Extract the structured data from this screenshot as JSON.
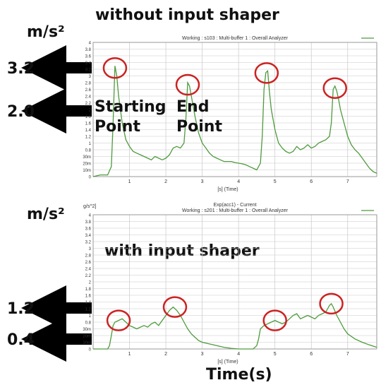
{
  "figure": {
    "title_top": "without input shaper",
    "title_bottom": "with input shaper",
    "unit_top": "m/s²",
    "unit_bottom": "m/s²",
    "x_axis_caption": "Time(s)",
    "starting_point_line1": "Starting",
    "starting_point_line2": "Point",
    "end_point_line1": "End",
    "end_point_line2": "Point",
    "markers_top": [
      "3.2",
      "2.0"
    ],
    "markers_bottom": [
      "1.2",
      "0.4"
    ]
  },
  "colors": {
    "signal": "#4e9a3c",
    "highlight_circle": "#cc2222",
    "arrow": "#000000",
    "grid": "#c8c8c8",
    "axis_box": "#9a9a9a"
  },
  "chart_data": [
    {
      "type": "line",
      "header": "Working : s103 : Multi-buffer 1 : Overall Analyzer",
      "xlabel": "[s] (Time)",
      "xlim": [
        0,
        7.8
      ],
      "ylim": [
        0,
        4
      ],
      "yticks": [
        "0",
        "10m",
        "20m",
        "30m",
        "0.8",
        "1",
        "1.2",
        "1.4",
        "1.6",
        "1.8",
        "2",
        "2.2",
        "2.4",
        "2.6",
        "2.8",
        "3",
        "3.2",
        "3.4",
        "3.6",
        "3.8",
        "4"
      ],
      "xticks": [
        "1",
        "2",
        "3",
        "4",
        "5",
        "6",
        "7"
      ],
      "grid": true,
      "series": [
        {
          "x": [
            0,
            0.2,
            0.4,
            0.5,
            0.55,
            0.6,
            0.65,
            0.7,
            0.8,
            0.9,
            1.0,
            1.1,
            1.2,
            1.3,
            1.4,
            1.5,
            1.6,
            1.7,
            1.8,
            1.9,
            2.0,
            2.1,
            2.2,
            2.3,
            2.4,
            2.5,
            2.55,
            2.6,
            2.65,
            2.7,
            2.8,
            2.9,
            3.0,
            3.1,
            3.2,
            3.3,
            3.4,
            3.5,
            3.6,
            3.7,
            3.8,
            3.9,
            4.0,
            4.1,
            4.2,
            4.3,
            4.4,
            4.5,
            4.6,
            4.65,
            4.7,
            4.75,
            4.8,
            4.85,
            4.9,
            5.0,
            5.1,
            5.2,
            5.3,
            5.4,
            5.5,
            5.6,
            5.7,
            5.8,
            5.9,
            6.0,
            6.1,
            6.2,
            6.3,
            6.4,
            6.5,
            6.55,
            6.6,
            6.65,
            6.7,
            6.75,
            6.8,
            6.9,
            7.0,
            7.1,
            7.2,
            7.3,
            7.4,
            7.5,
            7.6,
            7.7,
            7.8
          ],
          "y": [
            0.0,
            0.05,
            0.05,
            0.3,
            1.6,
            3.3,
            3.0,
            2.4,
            1.6,
            1.1,
            0.9,
            0.75,
            0.7,
            0.65,
            0.6,
            0.55,
            0.5,
            0.6,
            0.55,
            0.5,
            0.55,
            0.65,
            0.85,
            0.9,
            0.85,
            1.0,
            1.7,
            2.8,
            2.7,
            2.4,
            1.8,
            1.3,
            1.0,
            0.85,
            0.7,
            0.6,
            0.55,
            0.5,
            0.45,
            0.45,
            0.45,
            0.42,
            0.4,
            0.38,
            0.35,
            0.3,
            0.25,
            0.2,
            0.4,
            1.2,
            2.6,
            3.1,
            3.15,
            2.5,
            2.0,
            1.4,
            1.0,
            0.85,
            0.75,
            0.7,
            0.75,
            0.9,
            0.8,
            0.85,
            0.95,
            0.85,
            0.9,
            1.0,
            1.05,
            1.1,
            1.2,
            1.6,
            2.6,
            2.7,
            2.55,
            2.3,
            2.0,
            1.6,
            1.2,
            0.95,
            0.8,
            0.7,
            0.55,
            0.4,
            0.25,
            0.15,
            0.1
          ]
        }
      ]
    },
    {
      "type": "line",
      "header_line1": "Exp(acc1) - Current",
      "header_line2": "Working : s201 : Multi-buffer 1 : Overall Analyzer",
      "corner_unit": "g/s^2]",
      "xlabel": "[s] (Time)",
      "xlim": [
        0,
        7.8
      ],
      "ylim": [
        0,
        4
      ],
      "yticks": [
        "0",
        "10m",
        "20m",
        "30m",
        "0.8",
        "1",
        "1.2",
        "1.4",
        "1.6",
        "1.8",
        "2",
        "2.2",
        "2.4",
        "2.6",
        "2.8",
        "3",
        "3.2",
        "3.4",
        "3.6",
        "3.8",
        "4"
      ],
      "xticks": [
        "1",
        "2",
        "3",
        "4",
        "5",
        "6",
        "7"
      ],
      "grid": true,
      "series": [
        {
          "x": [
            0,
            0.2,
            0.4,
            0.45,
            0.5,
            0.55,
            0.6,
            0.7,
            0.8,
            0.9,
            1.0,
            1.1,
            1.2,
            1.3,
            1.4,
            1.5,
            1.6,
            1.7,
            1.8,
            1.9,
            2.0,
            2.1,
            2.2,
            2.3,
            2.4,
            2.5,
            2.6,
            2.7,
            2.8,
            2.9,
            3.0,
            3.2,
            3.4,
            3.6,
            3.8,
            4.0,
            4.2,
            4.4,
            4.5,
            4.55,
            4.6,
            4.7,
            4.8,
            4.9,
            5.0,
            5.1,
            5.2,
            5.3,
            5.4,
            5.5,
            5.6,
            5.7,
            5.8,
            5.9,
            6.0,
            6.1,
            6.2,
            6.3,
            6.4,
            6.45,
            6.5,
            6.55,
            6.6,
            6.7,
            6.8,
            6.9,
            7.0,
            7.2,
            7.4,
            7.6,
            7.8
          ],
          "y": [
            0.0,
            0.0,
            0.0,
            0.1,
            0.4,
            0.7,
            0.8,
            0.85,
            0.9,
            0.8,
            0.7,
            0.65,
            0.6,
            0.65,
            0.7,
            0.65,
            0.75,
            0.8,
            0.7,
            0.85,
            1.0,
            1.15,
            1.25,
            1.15,
            1.0,
            0.8,
            0.6,
            0.45,
            0.35,
            0.25,
            0.2,
            0.15,
            0.1,
            0.05,
            0.02,
            0.0,
            0.0,
            0.0,
            0.1,
            0.3,
            0.6,
            0.7,
            0.75,
            0.8,
            0.85,
            0.8,
            0.75,
            0.8,
            0.9,
            1.0,
            1.05,
            0.9,
            0.95,
            1.0,
            0.95,
            0.9,
            1.0,
            1.05,
            1.1,
            1.2,
            1.3,
            1.35,
            1.25,
            1.0,
            0.8,
            0.6,
            0.45,
            0.3,
            0.2,
            0.12,
            0.05
          ]
        }
      ]
    }
  ]
}
